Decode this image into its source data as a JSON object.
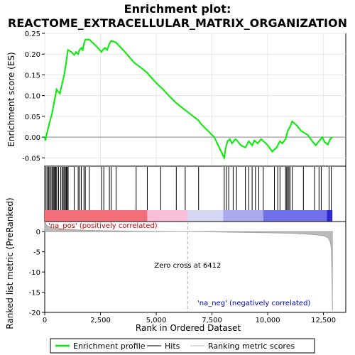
{
  "chart_data": {
    "type": "line",
    "title_line1": "Enrichment plot:",
    "title_line2": "REACTOME_EXTRACELLULAR_MATRIX_ORGANIZATION",
    "xlabel": "Rank in Ordered Dataset",
    "ylabel_top": "Enrichment score (ES)",
    "ylabel_bottom": "Ranked list metric (PreRanked)",
    "xlim": [
      0,
      13500
    ],
    "es_ylim": [
      -0.07,
      0.25
    ],
    "metric_ylim": [
      -20,
      2.5
    ],
    "x_ticks": [
      {
        "value": 0,
        "label": "0"
      },
      {
        "value": 2500,
        "label": "2,500"
      },
      {
        "value": 5000,
        "label": "5,000"
      },
      {
        "value": 7500,
        "label": "7,500"
      },
      {
        "value": 10000,
        "label": "10,000"
      },
      {
        "value": 12500,
        "label": "12,500"
      }
    ],
    "es_ticks": [
      {
        "value": -0.05,
        "label": "-0.05"
      },
      {
        "value": 0.0,
        "label": "0.00"
      },
      {
        "value": 0.05,
        "label": "0.05"
      },
      {
        "value": 0.1,
        "label": "0.10"
      },
      {
        "value": 0.15,
        "label": "0.15"
      },
      {
        "value": 0.2,
        "label": "0.20"
      },
      {
        "value": 0.25,
        "label": "0.25"
      }
    ],
    "metric_ticks": [
      {
        "value": 0,
        "label": "0"
      },
      {
        "value": -5,
        "label": "-5"
      },
      {
        "value": -10,
        "label": "-10"
      },
      {
        "value": -15,
        "label": "-15"
      },
      {
        "value": -20,
        "label": "-20"
      }
    ],
    "enrichment_profile": [
      [
        0,
        0
      ],
      [
        30,
        -0.008
      ],
      [
        100,
        0.01
      ],
      [
        150,
        0.02
      ],
      [
        200,
        0.032
      ],
      [
        270,
        0.045
      ],
      [
        330,
        0.058
      ],
      [
        380,
        0.072
      ],
      [
        430,
        0.086
      ],
      [
        480,
        0.1
      ],
      [
        530,
        0.115
      ],
      [
        600,
        0.11
      ],
      [
        680,
        0.105
      ],
      [
        720,
        0.115
      ],
      [
        780,
        0.128
      ],
      [
        830,
        0.14
      ],
      [
        880,
        0.152
      ],
      [
        920,
        0.165
      ],
      [
        960,
        0.18
      ],
      [
        1000,
        0.195
      ],
      [
        1040,
        0.21
      ],
      [
        1200,
        0.205
      ],
      [
        1320,
        0.198
      ],
      [
        1400,
        0.205
      ],
      [
        1500,
        0.2
      ],
      [
        1560,
        0.21
      ],
      [
        1640,
        0.215
      ],
      [
        1700,
        0.21
      ],
      [
        1760,
        0.225
      ],
      [
        1820,
        0.235
      ],
      [
        2000,
        0.235
      ],
      [
        2300,
        0.22
      ],
      [
        2550,
        0.205
      ],
      [
        2600,
        0.21
      ],
      [
        2700,
        0.215
      ],
      [
        2800,
        0.21
      ],
      [
        2900,
        0.225
      ],
      [
        2980,
        0.232
      ],
      [
        3200,
        0.228
      ],
      [
        3600,
        0.205
      ],
      [
        4000,
        0.18
      ],
      [
        4200,
        0.172
      ],
      [
        4600,
        0.155
      ],
      [
        4700,
        0.148
      ],
      [
        5100,
        0.125
      ],
      [
        5250,
        0.118
      ],
      [
        5600,
        0.098
      ],
      [
        5900,
        0.082
      ],
      [
        6300,
        0.065
      ],
      [
        6900,
        0.04
      ],
      [
        7000,
        0.032
      ],
      [
        7600,
        0.0
      ],
      [
        8050,
        -0.05
      ],
      [
        8100,
        -0.03
      ],
      [
        8200,
        -0.01
      ],
      [
        8300,
        -0.005
      ],
      [
        8400,
        -0.015
      ],
      [
        8550,
        -0.005
      ],
      [
        8650,
        -0.01
      ],
      [
        8800,
        -0.02
      ],
      [
        9000,
        -0.025
      ],
      [
        9150,
        -0.01
      ],
      [
        9300,
        -0.02
      ],
      [
        9400,
        -0.008
      ],
      [
        9550,
        -0.015
      ],
      [
        9700,
        -0.005
      ],
      [
        9850,
        -0.012
      ],
      [
        10000,
        -0.02
      ],
      [
        10200,
        -0.035
      ],
      [
        10400,
        -0.025
      ],
      [
        10550,
        -0.01
      ],
      [
        10650,
        -0.015
      ],
      [
        10800,
        -0.005
      ],
      [
        10900,
        0.015
      ],
      [
        11000,
        0.025
      ],
      [
        11100,
        0.038
      ],
      [
        11300,
        0.028
      ],
      [
        11500,
        0.015
      ],
      [
        11650,
        0.01
      ],
      [
        11800,
        0.005
      ],
      [
        12000,
        -0.01
      ],
      [
        12150,
        -0.02
      ],
      [
        12300,
        -0.01
      ],
      [
        12450,
        0.0
      ],
      [
        12550,
        -0.012
      ],
      [
        12700,
        -0.018
      ],
      [
        12800,
        -0.005
      ],
      [
        12900,
        0.0
      ]
    ],
    "hits": [
      60,
      120,
      170,
      220,
      280,
      330,
      380,
      420,
      460,
      500,
      540,
      620,
      720,
      780,
      830,
      880,
      930,
      970,
      1010,
      1050,
      1320,
      1500,
      1560,
      1640,
      1760,
      1820,
      2000,
      2550,
      2650,
      2900,
      2980,
      3200,
      4100,
      4600,
      5200,
      5900,
      6300,
      6900,
      8050,
      8150,
      8250,
      8450,
      8600,
      9000,
      9150,
      9300,
      9450,
      9600,
      9800,
      10300,
      10450,
      10550,
      10800,
      10850,
      10900,
      10950,
      11000,
      11100,
      11600,
      12100,
      12300,
      12400,
      12750,
      12850
    ],
    "metric_curve": [
      [
        0,
        2.5
      ],
      [
        100,
        1.5
      ],
      [
        300,
        1.0
      ],
      [
        800,
        0.6
      ],
      [
        2000,
        0.3
      ],
      [
        4000,
        0.1
      ],
      [
        6412,
        0
      ],
      [
        9000,
        -0.2
      ],
      [
        11000,
        -0.4
      ],
      [
        12000,
        -0.7
      ],
      [
        12500,
        -1.0
      ],
      [
        12700,
        -1.5
      ],
      [
        12800,
        -2.5
      ],
      [
        12850,
        -4
      ],
      [
        12880,
        -10
      ],
      [
        12900,
        -19.5
      ]
    ],
    "heat_bands": [
      {
        "from": 0,
        "to": 4600,
        "color": "#f46e7a"
      },
      {
        "from": 4600,
        "to": 6400,
        "color": "#f9bfd8"
      },
      {
        "from": 6400,
        "to": 8000,
        "color": "#d7d7f5"
      },
      {
        "from": 8000,
        "to": 9800,
        "color": "#a9a9ef"
      },
      {
        "from": 9800,
        "to": 12650,
        "color": "#6f6fe9"
      },
      {
        "from": 12650,
        "to": 12900,
        "color": "#2a2ad2"
      }
    ],
    "label_pos": "'na_pos' (positively correlated)",
    "label_neg": "'na_neg' (negatively correlated)",
    "zero_cross_label": "Zero cross at 6412",
    "zero_cross_x": 6412,
    "legend": [
      {
        "name": "Enrichment profile",
        "color": "#00ee00"
      },
      {
        "name": "Hits",
        "color": "#000000"
      },
      {
        "name": "Ranking metric scores",
        "color": "#bbbbbb"
      }
    ],
    "colors": {
      "es_line": "#00ee00",
      "pos_label": "#cc0000",
      "neg_label": "#0000cc",
      "metric_fill": "#bbbbbb"
    }
  }
}
